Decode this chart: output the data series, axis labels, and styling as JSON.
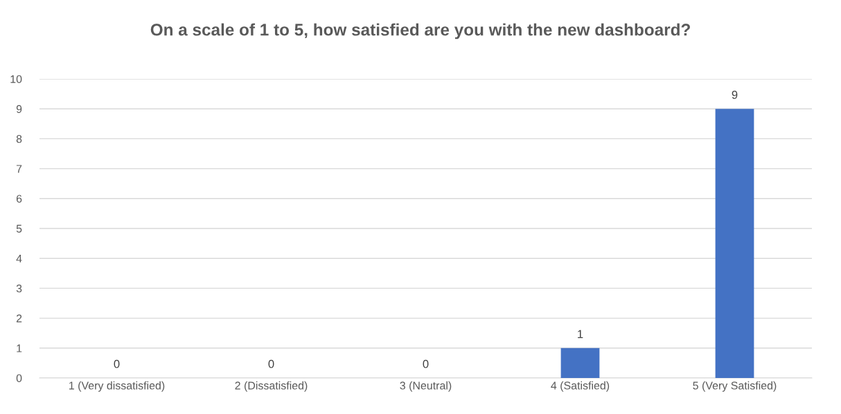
{
  "chart_data": {
    "type": "bar",
    "title": "On a scale of 1 to 5, how satisfied are you with the new dashboard?",
    "categories": [
      "1 (Very dissatisfied)",
      "2 (Dissatisfied)",
      "3 (Neutral)",
      "4 (Satisfied)",
      "5 (Very Satisfied)"
    ],
    "values": [
      0,
      0,
      0,
      1,
      9
    ],
    "color": "#4472c4",
    "ylim": [
      0,
      10
    ],
    "yticks": [
      0,
      1,
      2,
      3,
      4,
      5,
      6,
      7,
      8,
      9,
      10
    ],
    "grid": "y",
    "data_labels": true
  }
}
